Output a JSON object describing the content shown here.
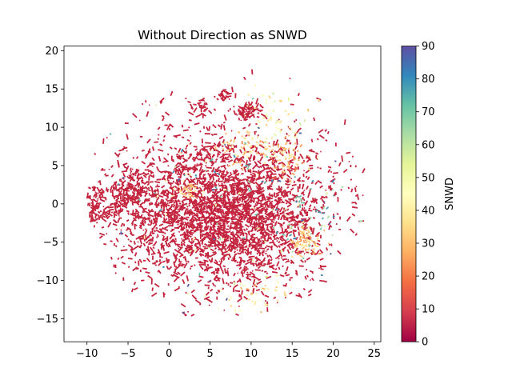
{
  "chart_data": {
    "type": "scatter",
    "title": "Without Direction as SNWD",
    "xlabel": "",
    "ylabel": "",
    "xlim": [
      -12.8,
      25.8
    ],
    "ylim": [
      -18.0,
      20.6
    ],
    "xticks": [
      -10,
      -5,
      0,
      5,
      10,
      15,
      20,
      25
    ],
    "yticks": [
      -15,
      -10,
      -5,
      0,
      5,
      10,
      15,
      20
    ],
    "grid": false,
    "colorbar": {
      "label": "SNWD",
      "range": [
        0,
        90
      ],
      "ticks": [
        0,
        10,
        20,
        30,
        40,
        50,
        60,
        70,
        80,
        90
      ],
      "colormap": "Spectral",
      "stops": [
        "#9e0142",
        "#d53e4f",
        "#f46d43",
        "#fdae61",
        "#fee08b",
        "#ffffbf",
        "#e6f598",
        "#abdda4",
        "#66c2a5",
        "#3288bd",
        "#5e4fa2"
      ]
    },
    "dominant_color": "#c4243e",
    "clusters": [
      {
        "x": 7.5,
        "y": 0,
        "rx": 14.5,
        "ry": 11,
        "n": 1400,
        "snwd": [
          0,
          6
        ]
      },
      {
        "x": 2.5,
        "y": -1,
        "rx": 10,
        "ry": 8,
        "n": 900,
        "snwd": [
          0,
          6
        ]
      },
      {
        "x": 9.5,
        "y": -3,
        "rx": 8,
        "ry": 8,
        "n": 700,
        "snwd": [
          0,
          6
        ]
      },
      {
        "x": -8,
        "y": 0,
        "rx": 3,
        "ry": 2.5,
        "n": 120,
        "snwd": [
          0,
          6
        ]
      },
      {
        "x": -4.5,
        "y": 2,
        "rx": 2.5,
        "ry": 2.5,
        "n": 110,
        "snwd": [
          0,
          6
        ]
      },
      {
        "x": 9.5,
        "y": 12,
        "rx": 1.5,
        "ry": 1.0,
        "n": 60,
        "snwd": [
          0,
          6
        ]
      },
      {
        "x": 6.5,
        "y": 14,
        "rx": 0.8,
        "ry": 0.7,
        "n": 25,
        "snwd": [
          0,
          6
        ]
      },
      {
        "x": 4,
        "y": 12.5,
        "rx": 1.2,
        "ry": 1.0,
        "n": 25,
        "snwd": [
          0,
          6
        ]
      },
      {
        "x": 10.5,
        "y": 7.5,
        "rx": 4,
        "ry": 2.5,
        "n": 90,
        "snwd": [
          20,
          45
        ]
      },
      {
        "x": 14.5,
        "y": 5.5,
        "rx": 2,
        "ry": 2,
        "n": 60,
        "snwd": [
          15,
          45
        ]
      },
      {
        "x": 16.5,
        "y": -4.5,
        "rx": 2,
        "ry": 2,
        "n": 70,
        "snwd": [
          20,
          40
        ]
      },
      {
        "x": 2.5,
        "y": 1.8,
        "rx": 1.5,
        "ry": 1.2,
        "n": 40,
        "snwd": [
          20,
          45
        ]
      },
      {
        "x": 10,
        "y": -12,
        "rx": 4,
        "ry": 2,
        "n": 40,
        "snwd": [
          25,
          50
        ]
      },
      {
        "x": 12,
        "y": 12,
        "rx": 5,
        "ry": 3,
        "n": 40,
        "snwd": [
          30,
          60
        ]
      },
      {
        "x": 8,
        "y": 0,
        "rx": 14,
        "ry": 11,
        "n": 110,
        "snwd": [
          40,
          90
        ]
      },
      {
        "x": 17,
        "y": -2,
        "rx": 4,
        "ry": 5,
        "n": 35,
        "snwd": [
          55,
          85
        ]
      }
    ]
  }
}
